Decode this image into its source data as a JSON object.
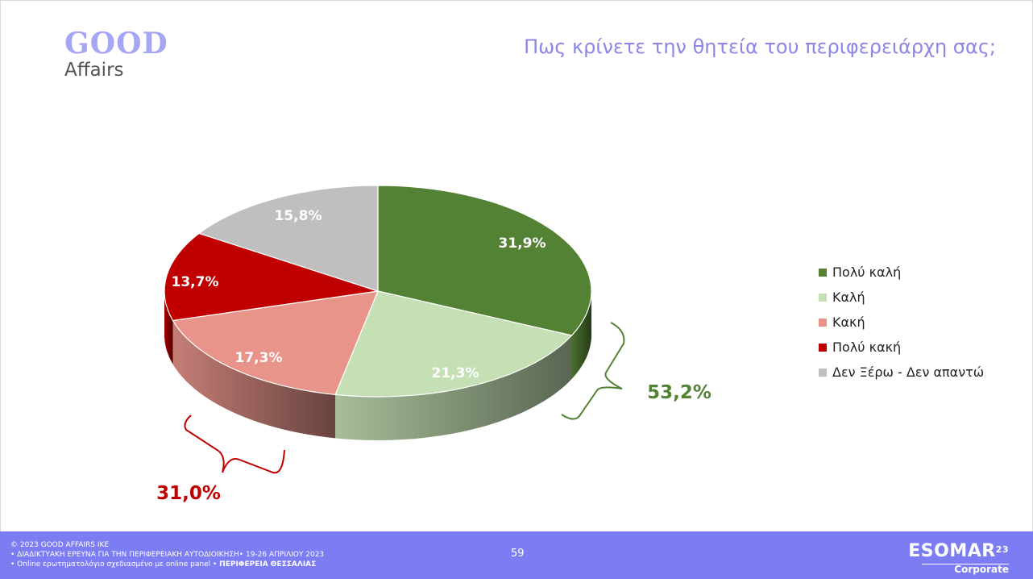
{
  "logo": {
    "brand_top": "GOOD",
    "brand_bottom": "Affairs"
  },
  "title": "Πως κρίνετε την θητεία του περιφερειάρχη σας;",
  "colors": {
    "title": "#8c86e6",
    "footer": "#7d7df3",
    "positive_total": "#548235",
    "negative_total": "#c00000"
  },
  "chart_data": {
    "type": "pie",
    "style": "3d",
    "title": "",
    "slices": [
      {
        "label": "Πολύ καλή",
        "value": 31.9,
        "display": "31,9%",
        "color": "#548235"
      },
      {
        "label": "Καλή",
        "value": 21.3,
        "display": "21,3%",
        "color": "#c5e0b4"
      },
      {
        "label": "Κακή",
        "value": 17.3,
        "display": "17,3%",
        "color": "#e8948b"
      },
      {
        "label": "Πολύ κακή",
        "value": 13.7,
        "display": "13,7%",
        "color": "#c00000"
      },
      {
        "label": "Δεν Ξέρω - Δεν απαντώ",
        "value": 15.8,
        "display": "15,8%",
        "color": "#bfbfbf"
      }
    ],
    "annotations": [
      {
        "text": "53,2%",
        "group": "Πολύ καλή + Καλή"
      },
      {
        "text": "31,0%",
        "group": "Κακή + Πολύ κακή"
      }
    ],
    "legend_position": "right"
  },
  "footer": {
    "copyright": "© 2023 GOOD AFFAIRS IKE",
    "line2": "• ΔΙΑΔΙΚΤΥΑΚΗ ΕΡΕΥΝΑ  ΓΙΑ ΤΗΝ ΠΕΡΙΦΕΡΕΙΑΚΗ ΑΥΤΟΔΙΟΙΚΗΣΗ• 19-26 ΑΠΡΙΛΙΟΥ 2023",
    "line3_prefix": "• Online ερωτηματολόγιο σχεδιασμένο με online panel  • ",
    "line3_bold": "ΠΕΡΙΦΕΡΕΙΑ ΘΕΣΣΑΛΙΑΣ",
    "page_number": "59",
    "esomar_name": "ESOMAR",
    "esomar_year": "23",
    "esomar_tier": "Corporate"
  }
}
